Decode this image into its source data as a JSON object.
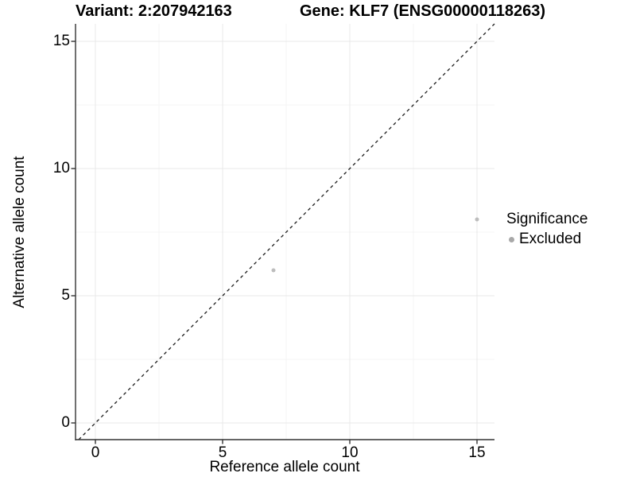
{
  "titles": {
    "variant": "Variant: 2:207942163",
    "gene": "Gene: KLF7 (ENSG00000118263)"
  },
  "axes": {
    "x": {
      "label": "Reference allele count"
    },
    "y": {
      "label": "Alternative allele count"
    }
  },
  "legend": {
    "title": "Significance",
    "items": [
      {
        "label": "Excluded",
        "color": "#a8a8a8"
      }
    ]
  },
  "colors": {
    "background": "#ffffff",
    "point": "#bdbdbd",
    "axis_line": "#333333",
    "tick_mark": "#333333",
    "grid_major": "#e9e9e9",
    "grid_minor": "#f4f4f4",
    "identity_line": "#1a1a1a",
    "text": "#000000"
  },
  "chart_data": {
    "type": "scatter",
    "title": "Variant: 2:207942163   Gene: KLF7 (ENSG00000118263)",
    "xlabel": "Reference allele count",
    "ylabel": "Alternative allele count",
    "xlim": [
      -0.78,
      15.7
    ],
    "ylim": [
      -0.66,
      15.7
    ],
    "x_ticks": [
      0,
      5,
      10,
      15
    ],
    "y_ticks": [
      0,
      5,
      10,
      15
    ],
    "x_minor_ticks": [
      2.5,
      7.5,
      12.5
    ],
    "y_minor_ticks": [
      2.5,
      7.5,
      12.5
    ],
    "grid": "major+minor",
    "legend_position": "right",
    "series": [
      {
        "name": "Excluded",
        "color": "#bdbdbd",
        "marker": "circle",
        "marker_radius": 2.5,
        "points": [
          {
            "x": 7,
            "y": 6
          },
          {
            "x": 15,
            "y": 8
          }
        ]
      }
    ],
    "reference_line": {
      "kind": "identity y=x",
      "style": "dashed",
      "color": "#1a1a1a"
    }
  }
}
